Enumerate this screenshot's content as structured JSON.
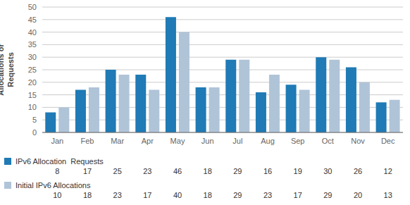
{
  "chart_data": {
    "type": "bar",
    "categories": [
      "Jan",
      "Feb",
      "Mar",
      "Apr",
      "May",
      "Jun",
      "Jul",
      "Aug",
      "Sep",
      "Oct",
      "Nov",
      "Dec"
    ],
    "series": [
      {
        "name": "IPv6 Allocation  Requests",
        "color": "#1f7ab5",
        "values": [
          8,
          17,
          25,
          23,
          46,
          18,
          29,
          16,
          19,
          30,
          26,
          12
        ]
      },
      {
        "name": "Initial IPv6 Allocations",
        "color": "#b0c4d8",
        "values": [
          10,
          18,
          23,
          17,
          40,
          18,
          29,
          23,
          17,
          29,
          20,
          13
        ]
      }
    ],
    "ylabel": "Allocations or\nRequests",
    "ylim": [
      0,
      50
    ],
    "yticks": [
      0,
      5,
      10,
      15,
      20,
      25,
      30,
      35,
      40,
      45,
      50
    ],
    "grid": true,
    "legend": "bottom"
  }
}
